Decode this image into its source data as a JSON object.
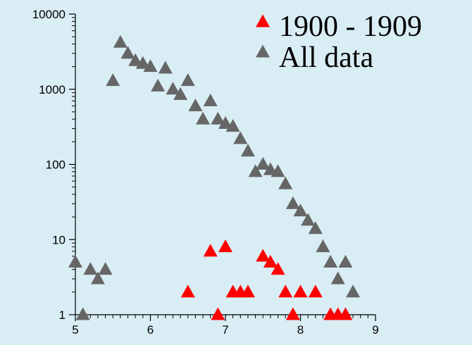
{
  "chart_data": {
    "type": "scatter",
    "title": "",
    "xlabel": "",
    "ylabel": "",
    "xlim": [
      5,
      9
    ],
    "ylim": [
      1,
      10000
    ],
    "y_scale": "log",
    "grid": false,
    "legend_placement": "top-right",
    "x_ticks": [
      5,
      6,
      7,
      8,
      9
    ],
    "y_ticks": [
      1,
      10,
      100,
      1000,
      10000
    ],
    "x_tick_labels": [
      "5",
      "6",
      "7",
      "8",
      "9"
    ],
    "y_tick_labels": [
      "1",
      "10",
      "100",
      "1000",
      "10000"
    ],
    "series": [
      {
        "name": "All data",
        "color": "#666666",
        "marker": "triangle",
        "points": [
          [
            5.0,
            5
          ],
          [
            5.1,
            1
          ],
          [
            5.2,
            4
          ],
          [
            5.3,
            3
          ],
          [
            5.4,
            4
          ],
          [
            5.5,
            1300
          ],
          [
            5.6,
            4200
          ],
          [
            5.7,
            3000
          ],
          [
            5.8,
            2400
          ],
          [
            5.9,
            2200
          ],
          [
            6.0,
            2000
          ],
          [
            6.1,
            1100
          ],
          [
            6.2,
            1900
          ],
          [
            6.3,
            1000
          ],
          [
            6.4,
            850
          ],
          [
            6.5,
            1300
          ],
          [
            6.6,
            600
          ],
          [
            6.7,
            400
          ],
          [
            6.8,
            700
          ],
          [
            6.9,
            400
          ],
          [
            7.0,
            350
          ],
          [
            7.1,
            320
          ],
          [
            7.2,
            220
          ],
          [
            7.3,
            150
          ],
          [
            7.4,
            80
          ],
          [
            7.5,
            100
          ],
          [
            7.6,
            85
          ],
          [
            7.7,
            80
          ],
          [
            7.8,
            55
          ],
          [
            7.9,
            30
          ],
          [
            8.0,
            24
          ],
          [
            8.1,
            18
          ],
          [
            8.2,
            14
          ],
          [
            8.3,
            8
          ],
          [
            8.4,
            5
          ],
          [
            8.5,
            3
          ],
          [
            8.6,
            5
          ],
          [
            8.7,
            2
          ]
        ]
      },
      {
        "name": "1900 - 1909",
        "color": "#ff0000",
        "marker": "triangle",
        "points": [
          [
            6.5,
            2
          ],
          [
            6.8,
            7
          ],
          [
            6.9,
            1
          ],
          [
            7.0,
            8
          ],
          [
            7.1,
            2
          ],
          [
            7.2,
            2
          ],
          [
            7.3,
            2
          ],
          [
            7.5,
            6
          ],
          [
            7.6,
            5
          ],
          [
            7.7,
            4
          ],
          [
            7.8,
            2
          ],
          [
            7.9,
            1
          ],
          [
            8.0,
            2
          ],
          [
            8.2,
            2
          ],
          [
            8.4,
            1
          ],
          [
            8.5,
            1
          ],
          [
            8.6,
            1
          ]
        ]
      }
    ],
    "legend": [
      {
        "label": "1900 - 1909",
        "color": "#ff0000"
      },
      {
        "label": "All data",
        "color": "#666666"
      }
    ]
  }
}
